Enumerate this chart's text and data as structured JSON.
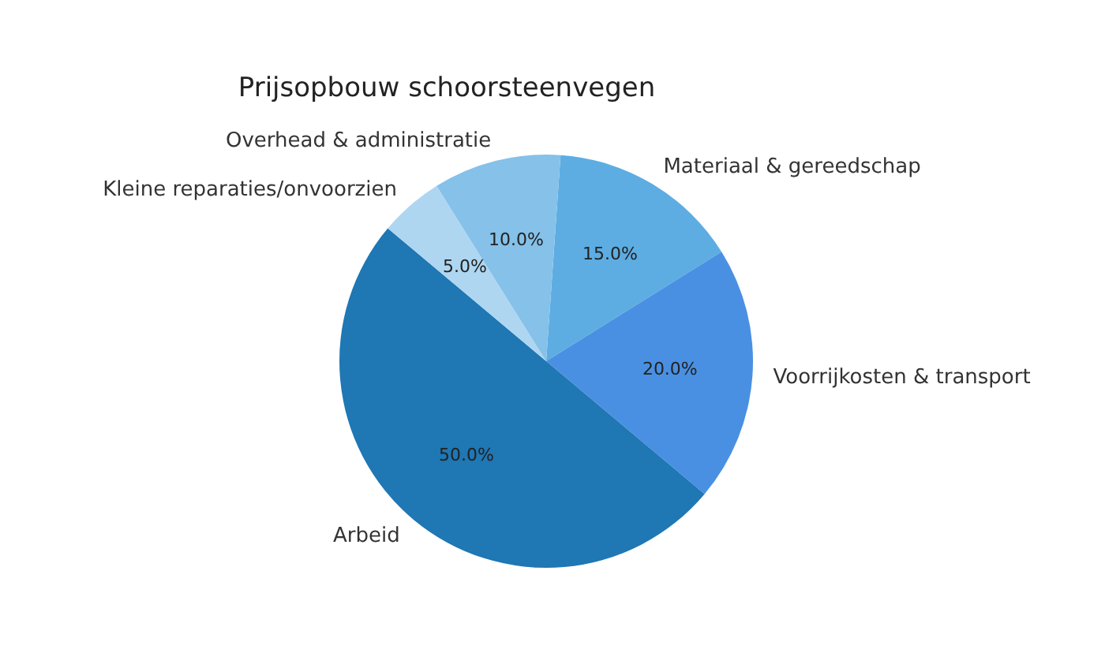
{
  "chart_data": {
    "type": "pie",
    "title": "Prijsopbouw schoorsteenvegen",
    "categories": [
      "Materiaal & gereedschap",
      "Voorrijkosten & transport",
      "Arbeid",
      "Kleine reparaties/onvoorzien",
      "Overhead & administratie"
    ],
    "values": [
      15,
      20,
      50,
      5,
      10
    ],
    "value_labels": [
      "15.0%",
      "20.0%",
      "50.0%",
      "5.0%",
      "10.0%"
    ],
    "colors": [
      "#5dade2",
      "#4a90e2",
      "#1f77b4",
      "#aed6f1",
      "#85c1e9"
    ]
  }
}
